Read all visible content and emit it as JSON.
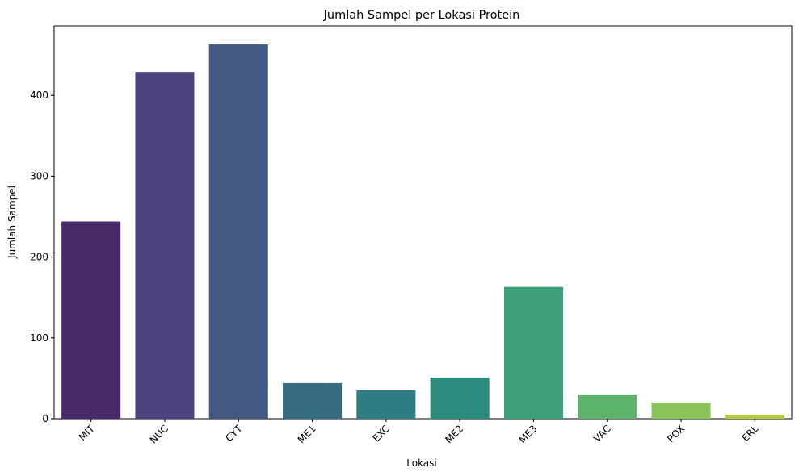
{
  "chart_data": {
    "type": "bar",
    "title": "Jumlah Sampel per Lokasi Protein",
    "xlabel": "Lokasi",
    "ylabel": "Jumlah Sampel",
    "categories": [
      "MIT",
      "NUC",
      "CYT",
      "ME1",
      "EXC",
      "ME2",
      "ME3",
      "VAC",
      "POX",
      "ERL"
    ],
    "values": [
      244,
      429,
      463,
      44,
      35,
      51,
      163,
      30,
      20,
      5
    ],
    "colors": [
      "#482a6b",
      "#4a437e",
      "#425a82",
      "#376b81",
      "#2e7c84",
      "#2b8c7e",
      "#3c9f77",
      "#5db36b",
      "#89c35a",
      "#b3cb3d"
    ],
    "yticks": [
      0,
      100,
      200,
      300,
      400
    ],
    "ylim": [
      0,
      486
    ],
    "grid": false,
    "legend": "none"
  }
}
